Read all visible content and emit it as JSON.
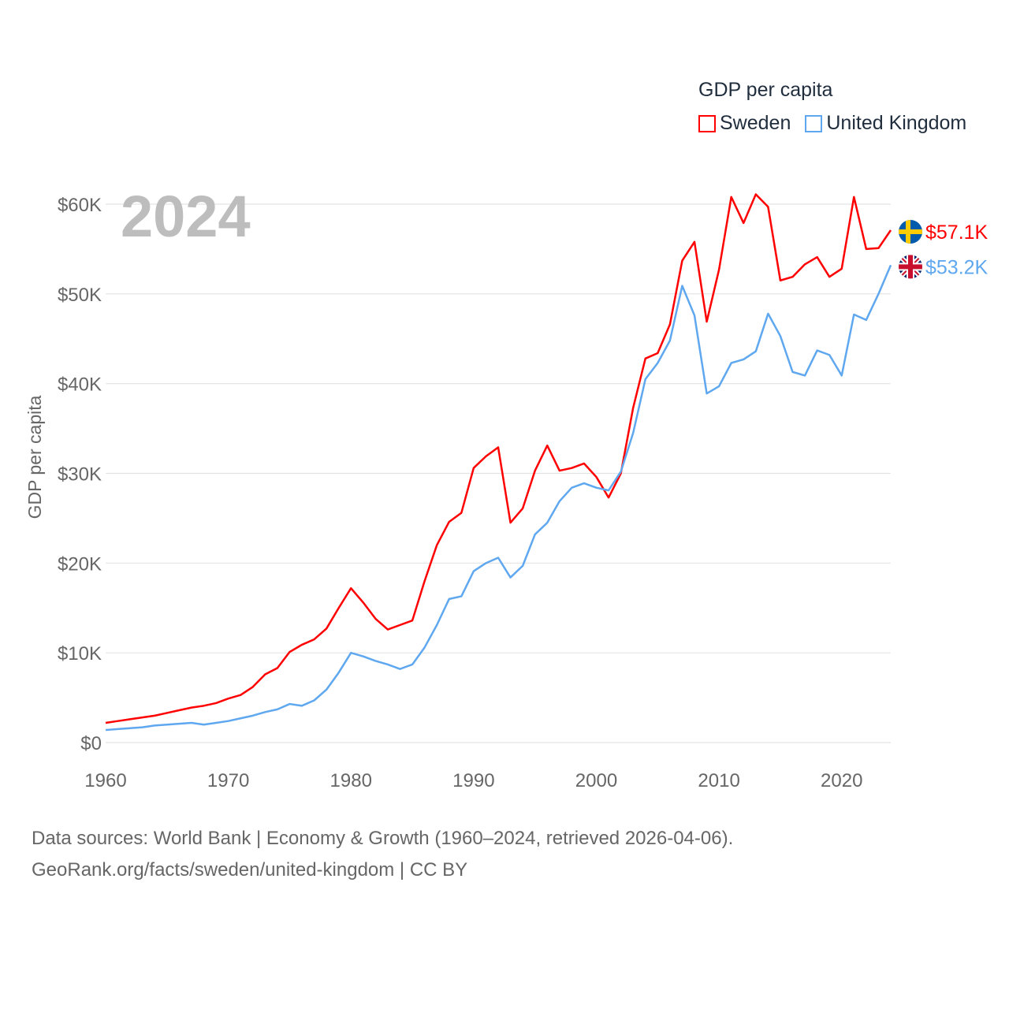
{
  "legend": {
    "title": "GDP per capita"
  },
  "year_label": "2024",
  "footer": {
    "line1": "Data sources: World Bank | Economy & Growth (1960–2024, retrieved 2026-04-06).",
    "line2": "GeoRank.org/facts/sweden/united-kingdom | CC BY"
  },
  "chart_data": {
    "type": "line",
    "ylabel": "GDP per capita",
    "xlabel": "",
    "xlim": [
      1960,
      2024
    ],
    "ylim": [
      0,
      60000
    ],
    "grid": true,
    "legend_position": "top-right",
    "x_ticks": [
      1960,
      1970,
      1980,
      1990,
      2000,
      2010,
      2020
    ],
    "x_tick_labels": [
      "1960",
      "1970",
      "1980",
      "1990",
      "2000",
      "2010",
      "2020"
    ],
    "y_ticks": [
      0,
      10000,
      20000,
      30000,
      40000,
      50000,
      60000
    ],
    "y_tick_labels": [
      "$0",
      "$10K",
      "$20K",
      "$30K",
      "$40K",
      "$50K",
      "$60K"
    ],
    "x_start": 1960,
    "series": [
      {
        "name": "Sweden",
        "color": "#ff0000",
        "flag": "sweden-flag",
        "end_label": "$57.1K",
        "values": [
          2.2,
          2.4,
          2.6,
          2.8,
          3.0,
          3.3,
          3.6,
          3.9,
          4.1,
          4.4,
          4.9,
          5.3,
          6.2,
          7.6,
          8.3,
          10.1,
          10.9,
          11.5,
          12.7,
          15.0,
          17.2,
          15.6,
          13.8,
          12.6,
          13.1,
          13.6,
          18.0,
          22.0,
          24.6,
          25.6,
          30.6,
          31.9,
          32.9,
          24.5,
          26.1,
          30.3,
          33.1,
          30.3,
          30.6,
          31.1,
          29.6,
          27.3,
          30.0,
          37.3,
          42.8,
          43.4,
          46.6,
          53.7,
          55.8,
          46.9,
          52.7,
          60.8,
          57.9,
          61.1,
          59.7,
          51.5,
          51.9,
          53.3,
          54.1,
          51.9,
          52.8,
          60.8,
          55.0,
          55.1,
          57.1
        ]
      },
      {
        "name": "United Kingdom",
        "color": "#5fa8f0",
        "flag": "uk-flag",
        "end_label": "$53.2K",
        "values": [
          1.4,
          1.5,
          1.6,
          1.7,
          1.9,
          2.0,
          2.1,
          2.2,
          2.0,
          2.2,
          2.4,
          2.7,
          3.0,
          3.4,
          3.7,
          4.3,
          4.1,
          4.7,
          5.9,
          7.8,
          10.0,
          9.6,
          9.1,
          8.7,
          8.2,
          8.7,
          10.6,
          13.1,
          16.0,
          16.3,
          19.1,
          20.0,
          20.6,
          18.4,
          19.7,
          23.2,
          24.5,
          26.9,
          28.4,
          28.9,
          28.4,
          28.1,
          30.2,
          34.5,
          40.5,
          42.3,
          44.8,
          50.9,
          47.6,
          38.9,
          39.7,
          42.3,
          42.7,
          43.6,
          47.8,
          45.3,
          41.3,
          40.9,
          43.7,
          43.2,
          40.9,
          47.7,
          47.1,
          50.0,
          53.2
        ]
      }
    ],
    "value_unit": "thousand USD"
  }
}
